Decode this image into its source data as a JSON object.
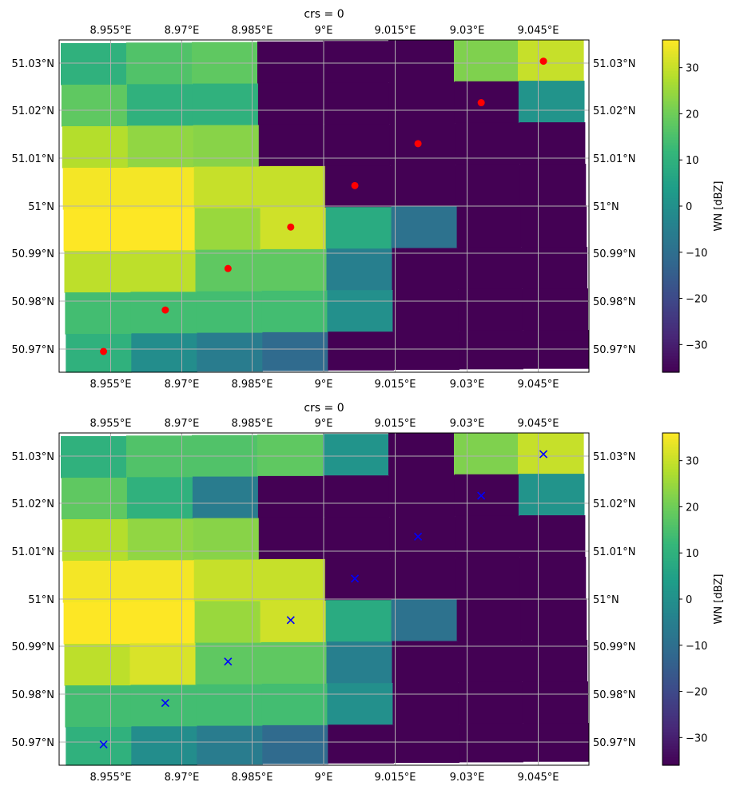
{
  "chart_data": [
    {
      "type": "heatmap",
      "title": "crs = 0",
      "xlabel": "",
      "ylabel": "",
      "x_ticks": [
        "8.955°E",
        "8.97°E",
        "8.985°E",
        "9°E",
        "9.015°E",
        "9.03°E",
        "9.045°E"
      ],
      "y_ticks": [
        "50.97°N",
        "50.98°N",
        "50.99°N",
        "51°N",
        "51.01°N",
        "51.02°N",
        "51.03°N"
      ],
      "grid": true,
      "colorbar": {
        "label": "WN [dBZ]",
        "colormap": "viridis",
        "range": [
          -36,
          36
        ],
        "ticks": [
          "30",
          "20",
          "10",
          "0",
          "−10",
          "−20",
          "−30"
        ]
      },
      "cell_values_rows_top_to_bottom": [
        [
          10,
          16,
          18,
          -36,
          -36,
          -36,
          22,
          30
        ],
        [
          18,
          10,
          10,
          -36,
          -36,
          -36,
          -36,
          1
        ],
        [
          28,
          24,
          23,
          -36,
          -36,
          -36,
          -36,
          -36
        ],
        [
          35,
          35,
          30,
          30,
          -36,
          -36,
          -36,
          -36
        ],
        [
          36,
          36,
          25,
          31,
          8,
          -9,
          -36,
          -36
        ],
        [
          29,
          29,
          18,
          18,
          -5,
          -36,
          -36,
          -36
        ],
        [
          14,
          14,
          14,
          14,
          0,
          -36,
          -36,
          -36
        ],
        [
          10,
          -1,
          -6,
          -11,
          -36,
          -36,
          -36,
          -36
        ]
      ],
      "overlay_points": {
        "marker": "o",
        "color": "#ff0000",
        "points": [
          [
            8.9535,
            50.9695
          ],
          [
            8.9665,
            50.9782
          ],
          [
            8.9797,
            50.9869
          ],
          [
            8.9929,
            50.9956
          ],
          [
            9.0064,
            51.0043
          ],
          [
            9.0197,
            51.0131
          ],
          [
            9.033,
            51.0217
          ],
          [
            9.0461,
            51.0304
          ]
        ]
      }
    },
    {
      "type": "heatmap",
      "title": "crs = 0",
      "xlabel": "",
      "ylabel": "",
      "x_ticks": [
        "8.955°E",
        "8.97°E",
        "8.985°E",
        "9°E",
        "9.015°E",
        "9.03°E",
        "9.045°E"
      ],
      "y_ticks": [
        "50.97°N",
        "50.98°N",
        "50.99°N",
        "51°N",
        "51.01°N",
        "51.02°N",
        "51.03°N"
      ],
      "grid": true,
      "colorbar": {
        "label": "WN [dBZ]",
        "colormap": "viridis",
        "range": [
          -36,
          36
        ],
        "ticks": [
          "30",
          "20",
          "10",
          "0",
          "−10",
          "−20",
          "−30"
        ]
      },
      "cell_values_rows_top_to_bottom": [
        [
          10,
          16,
          16,
          18,
          1,
          -36,
          22,
          30
        ],
        [
          18,
          10,
          -6,
          -36,
          -36,
          -36,
          -36,
          1
        ],
        [
          28,
          24,
          23,
          -36,
          -36,
          -36,
          -36,
          -36
        ],
        [
          35,
          35,
          30,
          30,
          -36,
          -36,
          -36,
          -36
        ],
        [
          36,
          36,
          25,
          31,
          8,
          -9,
          -36,
          -36
        ],
        [
          29,
          32,
          18,
          18,
          -5,
          -36,
          -36,
          -36
        ],
        [
          14,
          14,
          14,
          14,
          0,
          -36,
          -36,
          -36
        ],
        [
          10,
          -1,
          -6,
          -11,
          -36,
          -36,
          -36,
          -36
        ]
      ],
      "overlay_points": {
        "marker": "x",
        "color": "#0000ff",
        "points": [
          [
            8.9535,
            50.9695
          ],
          [
            8.9665,
            50.9782
          ],
          [
            8.9797,
            50.9869
          ],
          [
            8.9929,
            50.9956
          ],
          [
            9.0064,
            51.0043
          ],
          [
            9.0197,
            51.0131
          ],
          [
            9.033,
            51.0217
          ],
          [
            9.0461,
            51.0304
          ]
        ]
      }
    }
  ]
}
